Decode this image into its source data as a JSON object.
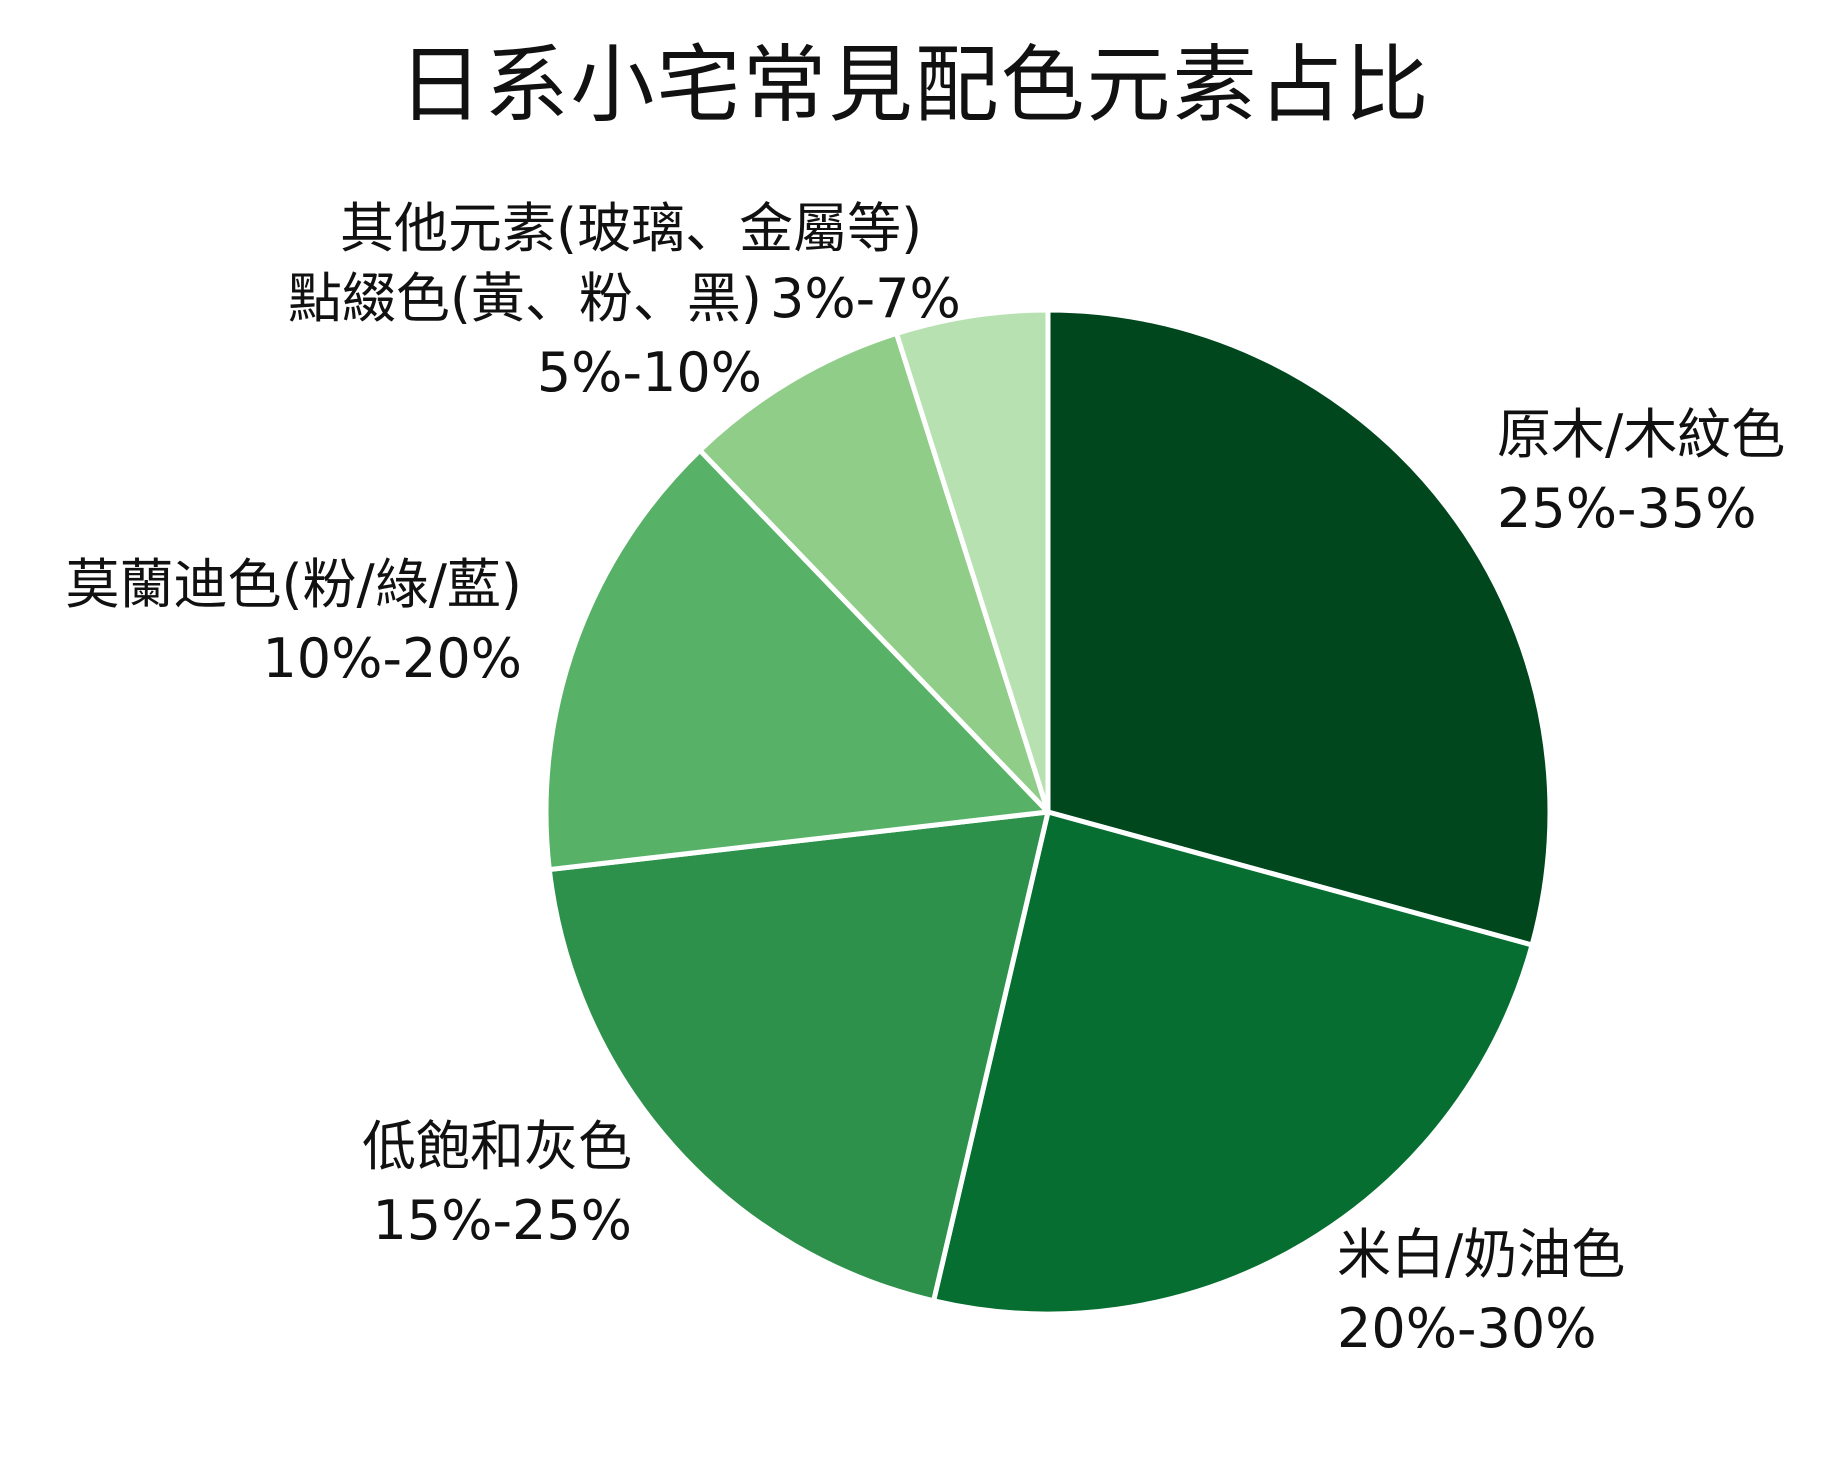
{
  "chart_data": {
    "type": "pie",
    "title": "日系小宅常見配色元素占比",
    "slices": [
      {
        "label": "原木/木紋色",
        "range": "25%-35%",
        "value": 30,
        "color": "#00471e"
      },
      {
        "label": "米白/奶油色",
        "range": "20%-30%",
        "value": 25,
        "color": "#066e30"
      },
      {
        "label": "低飽和灰色",
        "range": "15%-25%",
        "value": 20,
        "color": "#2d914b"
      },
      {
        "label": "莫蘭迪色(粉/綠/藍)",
        "range": "10%-20%",
        "value": 15,
        "color": "#57b268"
      },
      {
        "label": "點綴色(黃、粉、黑)",
        "range": "5%-10%",
        "value": 7.5,
        "color": "#8fcd88"
      },
      {
        "label": "其他元素(玻璃、金屬等)",
        "range": "3%-7%",
        "value": 5,
        "color": "#b7e1b1"
      }
    ],
    "start_angle": "12 o'clock",
    "direction": "clockwise",
    "legend": "none (direct labels)"
  }
}
